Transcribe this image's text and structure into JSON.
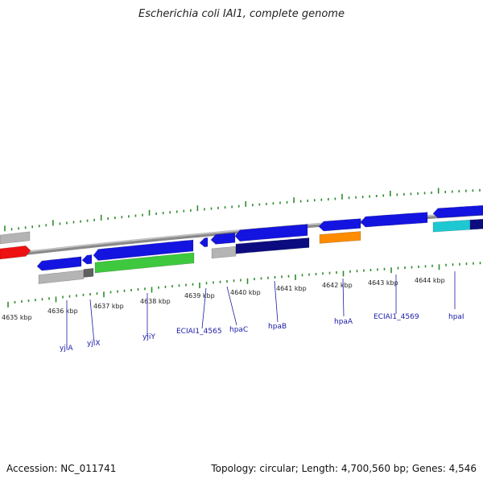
{
  "title": "Escherichia coli IAI1, complete genome",
  "footer": {
    "accession": "Accession: NC_011741",
    "summary": "Topology: circular; Length: 4,700,560 bp; Genes: 4,546"
  },
  "colors": {
    "backbone": "#8a8a8a",
    "ticks": "#2e8b2e",
    "tick_label": "#222222",
    "gene_label": "#1a1aa8",
    "cds": "#1414e0",
    "cds_dark": "#0c0c80",
    "gene_grey": "#b4b4b4",
    "gene_dgrey": "#606060",
    "gene_green": "#3ec83e",
    "gene_orange": "#ff8c00",
    "gene_cyan": "#1ec8d2",
    "gene_red": "#ee1111"
  },
  "kbp_labels": [
    "4635 kbp",
    "4636 kbp",
    "4637 kbp",
    "4638 kbp",
    "4639 kbp",
    "4640 kbp",
    "4641 kbp",
    "4642 kbp",
    "4643 kbp",
    "4644 kbp"
  ],
  "gene_labels": [
    "yjiA",
    "yjiX",
    "yjiY",
    "ECIAI1_4565",
    "hpaC",
    "hpaB",
    "hpaA",
    "ECIAI1_4569",
    "hpaI"
  ]
}
